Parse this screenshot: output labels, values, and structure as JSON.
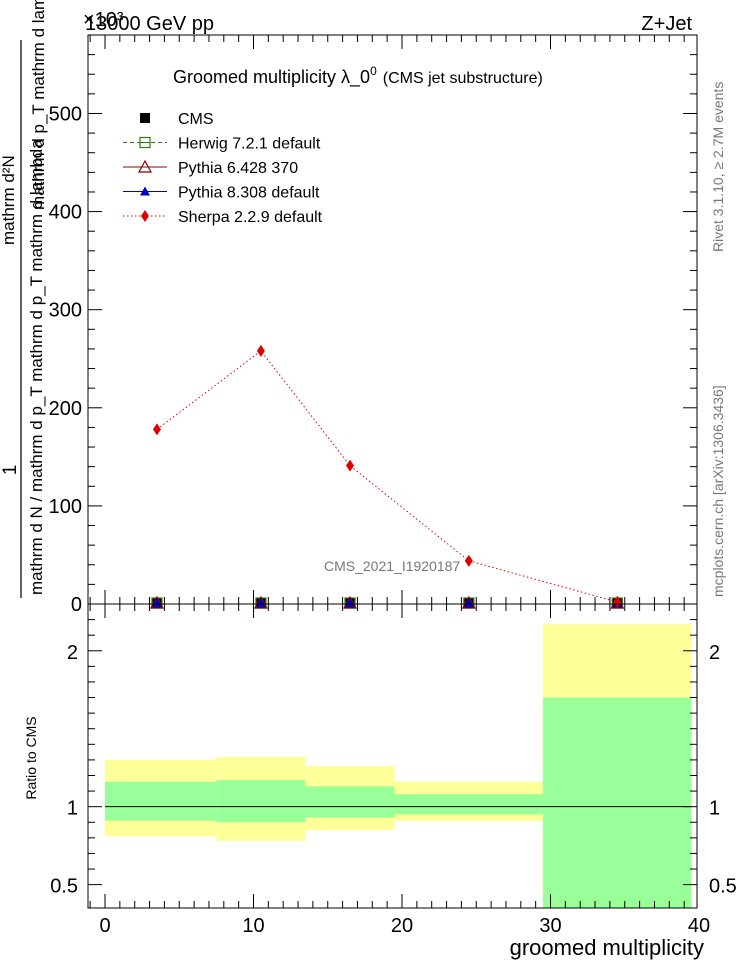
{
  "header": {
    "left": "13000 GeV pp",
    "right": "Z+Jet",
    "multiplier": "×10³"
  },
  "plot": {
    "title_main": "Groomed multiplicity  λ_0",
    "title_sup": "0",
    "title_small": "(CMS jet substructure)",
    "watermark": "CMS_2021_I1920187",
    "side_right_top": "Rivet 3.1.10, ≥ 2.7M events",
    "side_right_bottom": "mcplots.cern.ch [arXiv:1306.3436]",
    "ylabel_numer": "1",
    "ylabel_denom": "mathrm d N / mathrm d p_T mathrm d p_T mathrm d lambda",
    "ylabel_top_1": "mathrm d²N",
    "ylabel_top_2": "mathrm d p_T mathrm d lambda",
    "ratio_ylabel": "Ratio to CMS",
    "xlabel": "groomed multiplicity"
  },
  "colors": {
    "cms": "#000000",
    "herwig": "#2e7d12",
    "pythia6": "#8b0000",
    "pythia8": "#0000cc",
    "sherpa": "#e00000",
    "band_outer": "#ffff99",
    "band_inner": "#99ff99"
  },
  "chart_data": [
    {
      "type": "line",
      "x": [
        3.5,
        10.5,
        16.5,
        24.5,
        34.5
      ],
      "x_edges": [
        0,
        7.5,
        13.5,
        19.5,
        29.5,
        39.5
      ],
      "xlim": [
        -1,
        40
      ],
      "ylim": [
        0,
        580
      ],
      "ylabel_scale": "×10³",
      "yticks": [
        0,
        100,
        200,
        300,
        400,
        500
      ],
      "legend_position": "top-left",
      "series": [
        {
          "name": "CMS",
          "key": "cms",
          "values": [
            1,
            1,
            1,
            1,
            1
          ]
        },
        {
          "name": "Herwig 7.2.1 default",
          "key": "herwig",
          "values": [
            1,
            1,
            1,
            1,
            1
          ]
        },
        {
          "name": "Pythia 6.428 370",
          "key": "pythia6",
          "values": [
            1,
            1,
            1,
            1,
            1
          ]
        },
        {
          "name": "Pythia 8.308 default",
          "key": "pythia8",
          "values": [
            1,
            1,
            1,
            1,
            1
          ]
        },
        {
          "name": "Sherpa 2.2.9 default",
          "key": "sherpa",
          "values": [
            178,
            258,
            141,
            44,
            2
          ]
        }
      ]
    },
    {
      "type": "area",
      "title": "Ratio to CMS",
      "x_edges": [
        0,
        7.5,
        13.5,
        19.5,
        29.5,
        39.5
      ],
      "xlim": [
        -1,
        40
      ],
      "ylim": [
        0.35,
        2.3
      ],
      "yticks": [
        0.5,
        1,
        2
      ],
      "xticks": [
        0,
        10,
        20,
        30,
        40
      ],
      "outer_band": {
        "low": [
          0.81,
          0.78,
          0.85,
          0.91,
          0.35
        ],
        "high": [
          1.3,
          1.32,
          1.26,
          1.16,
          2.17
        ]
      },
      "inner_band": {
        "low": [
          0.91,
          0.9,
          0.93,
          0.95,
          0.35
        ],
        "high": [
          1.16,
          1.17,
          1.13,
          1.08,
          1.7
        ]
      },
      "reference": 1
    }
  ]
}
